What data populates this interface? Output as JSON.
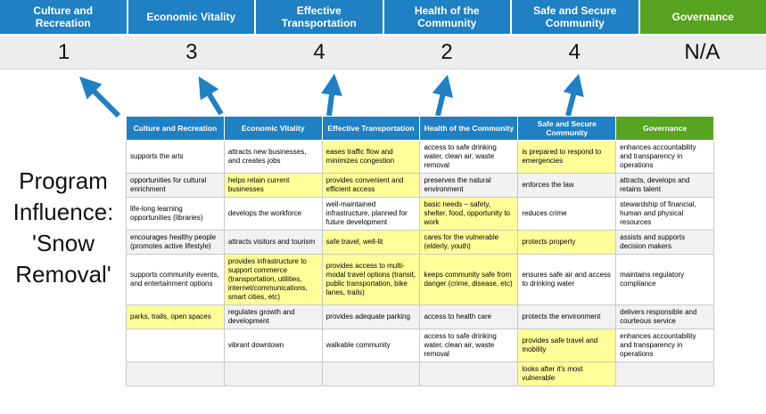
{
  "colors": {
    "blue": "#1f80c3",
    "green": "#56a41f",
    "highlight": "#ffff99",
    "arrow": "#1f80c3",
    "score_band": "#ededed"
  },
  "program_label": "Program Influence: 'Snow Removal'",
  "top": {
    "columns": [
      {
        "label": "Culture and Recreation",
        "score": "1",
        "color": "blue"
      },
      {
        "label": "Economic Vitality",
        "score": "3",
        "color": "blue"
      },
      {
        "label": "Effective Transportation",
        "score": "4",
        "color": "blue"
      },
      {
        "label": "Health of the Community",
        "score": "2",
        "color": "blue"
      },
      {
        "label": "Safe and Secure Community",
        "score": "4",
        "color": "blue"
      },
      {
        "label": "Governance",
        "score": "N/A",
        "color": "green"
      }
    ]
  },
  "matrix": {
    "headers": [
      {
        "label": "Culture and Recreation",
        "color": "blue"
      },
      {
        "label": "Economic Vitality",
        "color": "blue"
      },
      {
        "label": "Effective Transportation",
        "color": "blue"
      },
      {
        "label": "Health of the Community",
        "color": "blue"
      },
      {
        "label": "Safe and Secure Community",
        "color": "blue"
      },
      {
        "label": "Governance",
        "color": "green"
      }
    ],
    "rows": [
      [
        {
          "text": "supports the arts",
          "hl": false
        },
        {
          "text": "attracts new businesses, and creates jobs",
          "hl": false
        },
        {
          "text": "eases traffic flow and minimizes congestion",
          "hl": true
        },
        {
          "text": "access to safe drinking water, clean air, waste removal",
          "hl": false
        },
        {
          "text": "is prepared to respond to emergencies",
          "hl": true
        },
        {
          "text": "enhances accountability and transparency in operations",
          "hl": false
        }
      ],
      [
        {
          "text": "opportunities for cultural enrichment",
          "hl": false
        },
        {
          "text": "helps retain current businesses",
          "hl": true
        },
        {
          "text": "provides convenient and efficient access",
          "hl": true
        },
        {
          "text": "preserves the natural environment",
          "hl": false
        },
        {
          "text": "enforces the law",
          "hl": false
        },
        {
          "text": "attracts, develops and retains talent",
          "hl": false
        }
      ],
      [
        {
          "text": "life-long learning opportunities (libraries)",
          "hl": false
        },
        {
          "text": "develops the workforce",
          "hl": false
        },
        {
          "text": "well-maintained infrastructure, planned for future development",
          "hl": false
        },
        {
          "text": "basic needs – safety, shelter, food, opportunity to work",
          "hl": true
        },
        {
          "text": "reduces crime",
          "hl": false
        },
        {
          "text": "stewardship of financial, human and physical resources",
          "hl": false
        }
      ],
      [
        {
          "text": "encourages healthy people (promotes active lifestyle)",
          "hl": false
        },
        {
          "text": "attracts visitors and tourism",
          "hl": false
        },
        {
          "text": "safe travel, well-lit",
          "hl": true
        },
        {
          "text": "cares for the vulnerable (elderly, youth)",
          "hl": true
        },
        {
          "text": "protects property",
          "hl": true
        },
        {
          "text": "assists and supports decision makers",
          "hl": false
        }
      ],
      [
        {
          "text": "supports community events, and entertainment options",
          "hl": false
        },
        {
          "text": "provides infrastructure to support commerce (transportation, utilities, internet/communications, smart cities, etc)",
          "hl": true
        },
        {
          "text": "provides access to multi-modal travel options (transit, public transportation, bike lanes, trails)",
          "hl": true
        },
        {
          "text": "keeps community safe from danger (crime, disease, etc)",
          "hl": true
        },
        {
          "text": "ensures safe air and access to drinking water",
          "hl": false
        },
        {
          "text": "maintains regulatory compliance",
          "hl": false
        }
      ],
      [
        {
          "text": "parks, trails, open spaces",
          "hl": true
        },
        {
          "text": "regulates growth and development",
          "hl": false
        },
        {
          "text": "provides adequate parking",
          "hl": false
        },
        {
          "text": "access to health care",
          "hl": false
        },
        {
          "text": "protects the environment",
          "hl": false
        },
        {
          "text": "delivers responsible and courteous service",
          "hl": false
        }
      ],
      [
        {
          "text": "",
          "hl": false
        },
        {
          "text": "vibrant downtown",
          "hl": false
        },
        {
          "text": "walkable community",
          "hl": false
        },
        {
          "text": "access to safe drinking water, clean air, waste removal",
          "hl": false
        },
        {
          "text": "provides safe travel and mobility",
          "hl": true
        },
        {
          "text": "enhances accountability and transparency in operations",
          "hl": false
        }
      ],
      [
        {
          "text": "",
          "hl": false
        },
        {
          "text": "",
          "hl": false
        },
        {
          "text": "",
          "hl": false
        },
        {
          "text": "",
          "hl": false
        },
        {
          "text": "looks after it's most vulnerable",
          "hl": true
        },
        {
          "text": "",
          "hl": false
        }
      ]
    ]
  }
}
